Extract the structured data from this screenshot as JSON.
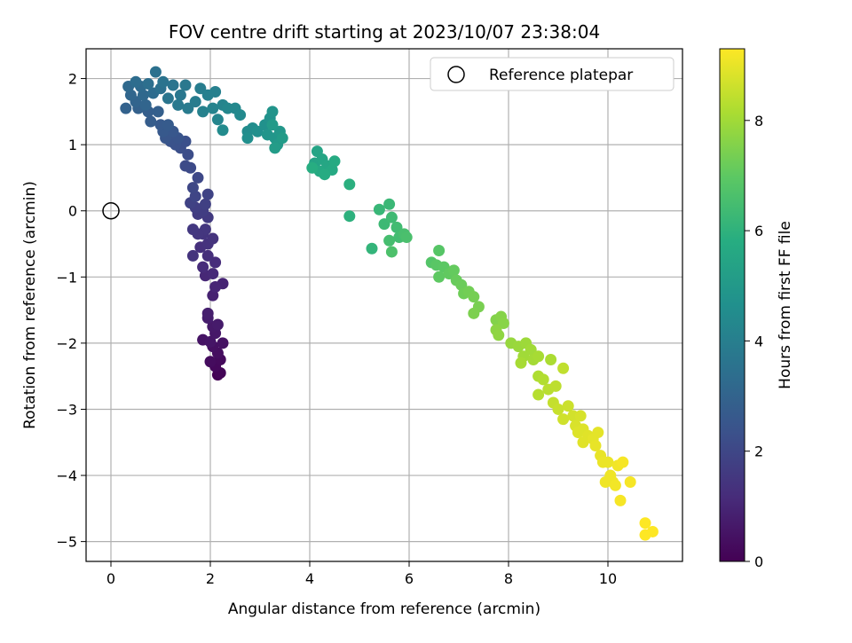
{
  "chart_data": {
    "type": "scatter",
    "title": "FOV centre drift starting at 2023/10/07 23:38:04",
    "xlabel": "Angular distance from reference (arcmin)",
    "ylabel": "Rotation from reference (arcmin)",
    "xlim": [
      -0.5,
      11.5
    ],
    "ylim": [
      -5.3,
      2.45
    ],
    "x_ticks": [
      "0",
      "2",
      "4",
      "6",
      "8",
      "10"
    ],
    "y_ticks": [
      "2",
      "1",
      "0",
      "−1",
      "−2",
      "−3",
      "−4",
      "−5"
    ],
    "grid": true,
    "legend": {
      "position": "top-right",
      "entries": [
        "Reference platepar"
      ]
    },
    "reference": {
      "x": 0,
      "y": 0
    },
    "colorbar": {
      "label": "Hours from first FF file",
      "colormap": "viridis",
      "range": [
        0,
        9.3
      ],
      "ticks": [
        "0",
        "2",
        "4",
        "6",
        "8"
      ]
    },
    "points": [
      {
        "x": 2.15,
        "y": -2.48,
        "t": 0.0
      },
      {
        "x": 2.2,
        "y": -2.45,
        "t": 0.1
      },
      {
        "x": 2.1,
        "y": -2.35,
        "t": 0.2
      },
      {
        "x": 2.2,
        "y": -2.25,
        "t": 0.25
      },
      {
        "x": 2.0,
        "y": -2.28,
        "t": 0.3
      },
      {
        "x": 2.15,
        "y": -2.15,
        "t": 0.35
      },
      {
        "x": 2.05,
        "y": -2.05,
        "t": 0.4
      },
      {
        "x": 2.25,
        "y": -2.0,
        "t": 0.45
      },
      {
        "x": 1.85,
        "y": -1.95,
        "t": 0.5
      },
      {
        "x": 2.0,
        "y": -1.98,
        "t": 0.55
      },
      {
        "x": 2.1,
        "y": -1.85,
        "t": 0.6
      },
      {
        "x": 2.05,
        "y": -1.75,
        "t": 0.65
      },
      {
        "x": 2.15,
        "y": -1.72,
        "t": 0.7
      },
      {
        "x": 1.95,
        "y": -1.62,
        "t": 0.75
      },
      {
        "x": 1.95,
        "y": -1.55,
        "t": 0.8
      },
      {
        "x": 2.05,
        "y": -1.28,
        "t": 0.9
      },
      {
        "x": 2.25,
        "y": -1.1,
        "t": 0.95
      },
      {
        "x": 2.1,
        "y": -1.15,
        "t": 1.0
      },
      {
        "x": 1.9,
        "y": -0.98,
        "t": 1.05
      },
      {
        "x": 2.05,
        "y": -0.95,
        "t": 1.1
      },
      {
        "x": 1.85,
        "y": -0.85,
        "t": 1.15
      },
      {
        "x": 2.1,
        "y": -0.78,
        "t": 1.2
      },
      {
        "x": 1.95,
        "y": -0.68,
        "t": 1.25
      },
      {
        "x": 1.8,
        "y": -0.55,
        "t": 1.3
      },
      {
        "x": 1.95,
        "y": -0.5,
        "t": 1.35
      },
      {
        "x": 2.05,
        "y": -0.42,
        "t": 1.4
      },
      {
        "x": 1.65,
        "y": -0.68,
        "t": 1.4
      },
      {
        "x": 1.85,
        "y": -0.35,
        "t": 1.45
      },
      {
        "x": 1.9,
        "y": -0.28,
        "t": 1.5
      },
      {
        "x": 1.75,
        "y": -0.35,
        "t": 1.5
      },
      {
        "x": 1.65,
        "y": -0.28,
        "t": 1.55
      },
      {
        "x": 1.95,
        "y": -0.1,
        "t": 1.6
      },
      {
        "x": 1.75,
        "y": -0.05,
        "t": 1.65
      },
      {
        "x": 1.85,
        "y": 0.0,
        "t": 1.7
      },
      {
        "x": 1.7,
        "y": 0.05,
        "t": 1.75
      },
      {
        "x": 1.9,
        "y": 0.1,
        "t": 1.8
      },
      {
        "x": 1.6,
        "y": 0.12,
        "t": 1.85
      },
      {
        "x": 1.95,
        "y": 0.25,
        "t": 1.9
      },
      {
        "x": 1.7,
        "y": 0.22,
        "t": 1.95
      },
      {
        "x": 1.65,
        "y": 0.35,
        "t": 2.0
      },
      {
        "x": 1.75,
        "y": 0.5,
        "t": 2.05
      },
      {
        "x": 1.6,
        "y": 0.65,
        "t": 2.1
      },
      {
        "x": 1.5,
        "y": 0.68,
        "t": 2.15
      },
      {
        "x": 1.55,
        "y": 0.85,
        "t": 2.2
      },
      {
        "x": 1.4,
        "y": 0.95,
        "t": 2.25
      },
      {
        "x": 1.5,
        "y": 1.05,
        "t": 2.3
      },
      {
        "x": 1.3,
        "y": 1.0,
        "t": 2.35
      },
      {
        "x": 1.2,
        "y": 1.05,
        "t": 2.4
      },
      {
        "x": 1.35,
        "y": 1.1,
        "t": 2.45
      },
      {
        "x": 1.1,
        "y": 1.1,
        "t": 2.5
      },
      {
        "x": 1.25,
        "y": 1.2,
        "t": 2.55
      },
      {
        "x": 1.05,
        "y": 1.2,
        "t": 2.6
      },
      {
        "x": 1.0,
        "y": 1.3,
        "t": 2.65
      },
      {
        "x": 1.15,
        "y": 1.3,
        "t": 2.7
      },
      {
        "x": 0.8,
        "y": 1.35,
        "t": 2.75
      },
      {
        "x": 0.75,
        "y": 1.5,
        "t": 2.8
      },
      {
        "x": 0.95,
        "y": 1.5,
        "t": 2.85
      },
      {
        "x": 0.55,
        "y": 1.55,
        "t": 2.9
      },
      {
        "x": 0.3,
        "y": 1.55,
        "t": 2.95
      },
      {
        "x": 0.5,
        "y": 1.65,
        "t": 3.0
      },
      {
        "x": 0.7,
        "y": 1.6,
        "t": 3.05
      },
      {
        "x": 0.4,
        "y": 1.75,
        "t": 3.1
      },
      {
        "x": 0.65,
        "y": 1.75,
        "t": 3.15
      },
      {
        "x": 0.35,
        "y": 1.88,
        "t": 3.2
      },
      {
        "x": 0.6,
        "y": 1.88,
        "t": 3.25
      },
      {
        "x": 0.85,
        "y": 1.78,
        "t": 3.3
      },
      {
        "x": 0.5,
        "y": 1.95,
        "t": 3.35
      },
      {
        "x": 0.75,
        "y": 1.92,
        "t": 3.4
      },
      {
        "x": 1.0,
        "y": 1.85,
        "t": 3.45
      },
      {
        "x": 0.9,
        "y": 2.1,
        "t": 3.5
      },
      {
        "x": 1.05,
        "y": 1.95,
        "t": 3.55
      },
      {
        "x": 1.25,
        "y": 1.9,
        "t": 3.6
      },
      {
        "x": 1.15,
        "y": 1.7,
        "t": 3.65
      },
      {
        "x": 1.4,
        "y": 1.75,
        "t": 3.7
      },
      {
        "x": 1.5,
        "y": 1.9,
        "t": 3.75
      },
      {
        "x": 1.35,
        "y": 1.6,
        "t": 3.8
      },
      {
        "x": 1.55,
        "y": 1.55,
        "t": 3.85
      },
      {
        "x": 1.7,
        "y": 1.65,
        "t": 3.9
      },
      {
        "x": 1.8,
        "y": 1.85,
        "t": 3.95
      },
      {
        "x": 1.95,
        "y": 1.75,
        "t": 4.0
      },
      {
        "x": 2.1,
        "y": 1.8,
        "t": 4.05
      },
      {
        "x": 1.85,
        "y": 1.5,
        "t": 4.1
      },
      {
        "x": 2.05,
        "y": 1.55,
        "t": 4.15
      },
      {
        "x": 2.25,
        "y": 1.6,
        "t": 4.2
      },
      {
        "x": 2.15,
        "y": 1.38,
        "t": 4.25
      },
      {
        "x": 2.35,
        "y": 1.55,
        "t": 4.3
      },
      {
        "x": 2.5,
        "y": 1.55,
        "t": 4.35
      },
      {
        "x": 2.6,
        "y": 1.45,
        "t": 4.4
      },
      {
        "x": 2.25,
        "y": 1.22,
        "t": 4.45
      },
      {
        "x": 2.75,
        "y": 1.2,
        "t": 4.5
      },
      {
        "x": 2.85,
        "y": 1.25,
        "t": 4.55
      },
      {
        "x": 2.75,
        "y": 1.1,
        "t": 4.6
      },
      {
        "x": 2.95,
        "y": 1.2,
        "t": 4.65
      },
      {
        "x": 3.1,
        "y": 1.3,
        "t": 4.7
      },
      {
        "x": 3.2,
        "y": 1.4,
        "t": 4.75
      },
      {
        "x": 3.25,
        "y": 1.5,
        "t": 4.8
      },
      {
        "x": 3.15,
        "y": 1.15,
        "t": 4.85
      },
      {
        "x": 3.3,
        "y": 1.1,
        "t": 4.9
      },
      {
        "x": 3.4,
        "y": 1.2,
        "t": 4.95
      },
      {
        "x": 3.35,
        "y": 1.0,
        "t": 5.0
      },
      {
        "x": 3.25,
        "y": 1.3,
        "t": 5.05
      },
      {
        "x": 3.45,
        "y": 1.1,
        "t": 5.1
      },
      {
        "x": 3.3,
        "y": 0.95,
        "t": 5.15
      },
      {
        "x": 4.1,
        "y": 0.72,
        "t": 5.4
      },
      {
        "x": 4.15,
        "y": 0.9,
        "t": 5.45
      },
      {
        "x": 4.25,
        "y": 0.78,
        "t": 5.5
      },
      {
        "x": 4.35,
        "y": 0.68,
        "t": 5.55
      },
      {
        "x": 4.2,
        "y": 0.6,
        "t": 5.6
      },
      {
        "x": 4.45,
        "y": 0.62,
        "t": 5.65
      },
      {
        "x": 4.5,
        "y": 0.75,
        "t": 5.7
      },
      {
        "x": 4.3,
        "y": 0.55,
        "t": 5.75
      },
      {
        "x": 4.05,
        "y": 0.65,
        "t": 5.8
      },
      {
        "x": 4.8,
        "y": 0.4,
        "t": 5.9
      },
      {
        "x": 4.8,
        "y": -0.08,
        "t": 5.95
      },
      {
        "x": 5.25,
        "y": -0.57,
        "t": 6.1
      },
      {
        "x": 5.4,
        "y": 0.02,
        "t": 6.2
      },
      {
        "x": 5.6,
        "y": 0.1,
        "t": 6.25
      },
      {
        "x": 5.5,
        "y": -0.2,
        "t": 6.3
      },
      {
        "x": 5.65,
        "y": -0.1,
        "t": 6.35
      },
      {
        "x": 5.75,
        "y": -0.25,
        "t": 6.4
      },
      {
        "x": 5.8,
        "y": -0.4,
        "t": 6.45
      },
      {
        "x": 5.6,
        "y": -0.45,
        "t": 6.5
      },
      {
        "x": 5.9,
        "y": -0.35,
        "t": 6.55
      },
      {
        "x": 5.95,
        "y": -0.4,
        "t": 6.6
      },
      {
        "x": 5.65,
        "y": -0.62,
        "t": 6.65
      },
      {
        "x": 6.45,
        "y": -0.78,
        "t": 6.8
      },
      {
        "x": 6.6,
        "y": -0.6,
        "t": 6.85
      },
      {
        "x": 6.55,
        "y": -0.82,
        "t": 6.9
      },
      {
        "x": 6.7,
        "y": -0.85,
        "t": 6.95
      },
      {
        "x": 6.6,
        "y": -1.0,
        "t": 7.0
      },
      {
        "x": 6.8,
        "y": -0.95,
        "t": 7.05
      },
      {
        "x": 6.9,
        "y": -0.9,
        "t": 7.1
      },
      {
        "x": 6.95,
        "y": -1.05,
        "t": 7.15
      },
      {
        "x": 7.05,
        "y": -1.12,
        "t": 7.2
      },
      {
        "x": 7.1,
        "y": -1.25,
        "t": 7.25
      },
      {
        "x": 7.2,
        "y": -1.22,
        "t": 7.3
      },
      {
        "x": 7.3,
        "y": -1.3,
        "t": 7.35
      },
      {
        "x": 7.4,
        "y": -1.45,
        "t": 7.4
      },
      {
        "x": 7.3,
        "y": -1.55,
        "t": 7.45
      },
      {
        "x": 7.75,
        "y": -1.65,
        "t": 7.55
      },
      {
        "x": 7.85,
        "y": -1.6,
        "t": 7.6
      },
      {
        "x": 7.9,
        "y": -1.7,
        "t": 7.65
      },
      {
        "x": 7.75,
        "y": -1.8,
        "t": 7.7
      },
      {
        "x": 7.8,
        "y": -1.88,
        "t": 7.75
      },
      {
        "x": 8.05,
        "y": -2.0,
        "t": 7.85
      },
      {
        "x": 8.2,
        "y": -2.05,
        "t": 7.9
      },
      {
        "x": 8.35,
        "y": -2.0,
        "t": 7.95
      },
      {
        "x": 8.45,
        "y": -2.1,
        "t": 8.0
      },
      {
        "x": 8.3,
        "y": -2.2,
        "t": 8.0
      },
      {
        "x": 8.5,
        "y": -2.25,
        "t": 8.05
      },
      {
        "x": 8.25,
        "y": -2.3,
        "t": 8.1
      },
      {
        "x": 8.6,
        "y": -2.2,
        "t": 8.1
      },
      {
        "x": 8.85,
        "y": -2.25,
        "t": 8.15
      },
      {
        "x": 8.6,
        "y": -2.5,
        "t": 8.2
      },
      {
        "x": 8.7,
        "y": -2.55,
        "t": 8.25
      },
      {
        "x": 8.6,
        "y": -2.78,
        "t": 8.3
      },
      {
        "x": 8.8,
        "y": -2.7,
        "t": 8.35
      },
      {
        "x": 8.95,
        "y": -2.65,
        "t": 8.4
      },
      {
        "x": 9.1,
        "y": -2.38,
        "t": 8.45
      },
      {
        "x": 8.9,
        "y": -2.9,
        "t": 8.5
      },
      {
        "x": 9.0,
        "y": -3.0,
        "t": 8.55
      },
      {
        "x": 9.2,
        "y": -2.95,
        "t": 8.6
      },
      {
        "x": 9.1,
        "y": -3.15,
        "t": 8.65
      },
      {
        "x": 9.3,
        "y": -3.1,
        "t": 8.7
      },
      {
        "x": 9.45,
        "y": -3.1,
        "t": 8.75
      },
      {
        "x": 9.35,
        "y": -3.25,
        "t": 8.8
      },
      {
        "x": 9.5,
        "y": -3.3,
        "t": 8.85
      },
      {
        "x": 9.4,
        "y": -3.35,
        "t": 8.85
      },
      {
        "x": 9.6,
        "y": -3.4,
        "t": 8.9
      },
      {
        "x": 9.5,
        "y": -3.5,
        "t": 8.9
      },
      {
        "x": 9.7,
        "y": -3.45,
        "t": 8.95
      },
      {
        "x": 9.8,
        "y": -3.35,
        "t": 8.95
      },
      {
        "x": 9.75,
        "y": -3.55,
        "t": 9.0
      },
      {
        "x": 9.85,
        "y": -3.7,
        "t": 9.0
      },
      {
        "x": 9.9,
        "y": -3.8,
        "t": 9.05
      },
      {
        "x": 10.0,
        "y": -3.8,
        "t": 9.05
      },
      {
        "x": 10.05,
        "y": -4.0,
        "t": 9.1
      },
      {
        "x": 10.1,
        "y": -4.1,
        "t": 9.1
      },
      {
        "x": 9.95,
        "y": -4.1,
        "t": 9.1
      },
      {
        "x": 10.2,
        "y": -3.85,
        "t": 9.15
      },
      {
        "x": 10.15,
        "y": -4.15,
        "t": 9.15
      },
      {
        "x": 10.3,
        "y": -3.8,
        "t": 9.2
      },
      {
        "x": 10.45,
        "y": -4.1,
        "t": 9.2
      },
      {
        "x": 10.25,
        "y": -4.38,
        "t": 9.2
      },
      {
        "x": 10.75,
        "y": -4.72,
        "t": 9.3
      },
      {
        "x": 10.9,
        "y": -4.85,
        "t": 9.3
      },
      {
        "x": 10.75,
        "y": -4.9,
        "t": 9.3
      }
    ]
  }
}
